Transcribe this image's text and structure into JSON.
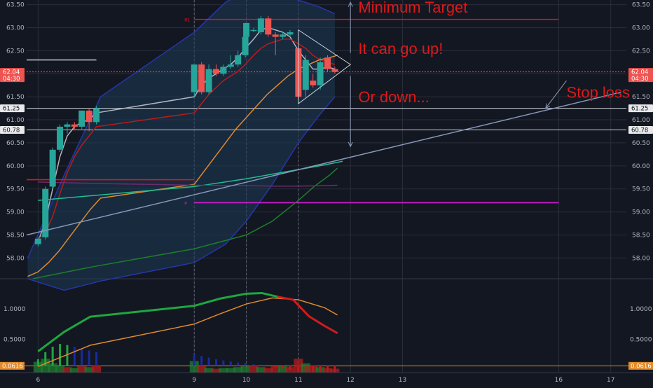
{
  "chart_data": {
    "type": "candlestick",
    "colors": {
      "background": "#131722",
      "grid": "#2a2e39",
      "up": "#26a69a",
      "down": "#ef5350",
      "target_line": "#e0141e",
      "pivot_line": "#d81bd8",
      "annotation": "#e01818",
      "ema_fast": "#b2b5be",
      "ema_red": "#b71c1c",
      "ma_orange": "#e08a2c",
      "ma_teal": "#1fbf8f",
      "ma_green": "#1b7f2a",
      "trendline": "#8797b8",
      "band_fill": "#1e3a56",
      "band_edge": "#2635a8",
      "macd_line": "#1ea73f",
      "macd_signal": "#e08a2c",
      "macd_hist_pos": "#1e7f30",
      "macd_hist_neg": "#b71c1c",
      "macd_blue": "#1a2a9e",
      "zero_line": "#e08a2c"
    },
    "price_axis": {
      "ylim": [
        57.55,
        63.6
      ],
      "ticks": [
        "58.00",
        "58.50",
        "59.00",
        "59.50",
        "60.00",
        "60.50",
        "61.00",
        "61.50",
        "62.00",
        "62.50",
        "63.00",
        "63.50"
      ],
      "tick_values": [
        58,
        58.5,
        59,
        59.5,
        60,
        60.5,
        61,
        61.5,
        62,
        62.5,
        63,
        63.5
      ]
    },
    "time_axis": {
      "xlim": [
        5.78,
        17.3
      ],
      "ticks": [
        "6",
        "9",
        "10",
        "11",
        "12",
        "13",
        "16",
        "17"
      ],
      "tick_positions": [
        6,
        9,
        10,
        11,
        12,
        13,
        16,
        17
      ]
    },
    "candles": [
      {
        "x": 6.0,
        "o": 58.3,
        "h": 58.45,
        "l": 58.25,
        "c": 58.42
      },
      {
        "x": 6.14,
        "o": 58.45,
        "h": 59.55,
        "l": 58.4,
        "c": 59.5
      },
      {
        "x": 6.28,
        "o": 59.55,
        "h": 60.4,
        "l": 59.5,
        "c": 60.35
      },
      {
        "x": 6.42,
        "o": 60.35,
        "h": 60.9,
        "l": 60.3,
        "c": 60.85
      },
      {
        "x": 6.56,
        "o": 60.85,
        "h": 60.95,
        "l": 60.7,
        "c": 60.9
      },
      {
        "x": 6.7,
        "o": 60.9,
        "h": 60.95,
        "l": 60.8,
        "c": 60.85
      },
      {
        "x": 6.84,
        "o": 60.85,
        "h": 61.2,
        "l": 60.8,
        "c": 61.2
      },
      {
        "x": 6.98,
        "o": 61.2,
        "h": 61.25,
        "l": 60.75,
        "c": 60.95
      },
      {
        "x": 7.12,
        "o": 60.95,
        "h": 61.3,
        "l": 60.9,
        "c": 61.25
      },
      {
        "x": 9.0,
        "o": 61.6,
        "h": 62.2,
        "l": 61.5,
        "c": 62.2
      },
      {
        "x": 9.14,
        "o": 62.2,
        "h": 62.25,
        "l": 61.55,
        "c": 61.6
      },
      {
        "x": 9.28,
        "o": 61.6,
        "h": 62.2,
        "l": 61.55,
        "c": 62.1
      },
      {
        "x": 9.42,
        "o": 62.1,
        "h": 62.2,
        "l": 61.95,
        "c": 62.0
      },
      {
        "x": 9.56,
        "o": 62.0,
        "h": 62.2,
        "l": 61.95,
        "c": 62.15
      },
      {
        "x": 9.7,
        "o": 62.15,
        "h": 62.4,
        "l": 62.1,
        "c": 62.2
      },
      {
        "x": 9.84,
        "o": 62.2,
        "h": 62.5,
        "l": 62.15,
        "c": 62.4
      },
      {
        "x": 9.98,
        "o": 62.4,
        "h": 62.8,
        "l": 62.35,
        "c": 62.8
      },
      {
        "x": 10.0,
        "o": 62.8,
        "h": 63.1,
        "l": 62.75,
        "c": 63.1
      },
      {
        "x": 10.14,
        "o": 62.95,
        "h": 63.0,
        "l": 62.9,
        "c": 62.95
      },
      {
        "x": 10.28,
        "o": 62.9,
        "h": 63.25,
        "l": 62.85,
        "c": 63.2
      },
      {
        "x": 10.42,
        "o": 63.2,
        "h": 63.25,
        "l": 62.8,
        "c": 62.85
      },
      {
        "x": 10.56,
        "o": 62.85,
        "h": 62.9,
        "l": 62.4,
        "c": 62.8
      },
      {
        "x": 10.7,
        "o": 62.8,
        "h": 62.9,
        "l": 62.75,
        "c": 62.85
      },
      {
        "x": 10.84,
        "o": 62.85,
        "h": 62.95,
        "l": 62.8,
        "c": 62.9
      },
      {
        "x": 11.0,
        "o": 62.55,
        "h": 62.6,
        "l": 61.45,
        "c": 61.5
      },
      {
        "x": 11.14,
        "o": 61.65,
        "h": 62.4,
        "l": 61.5,
        "c": 62.3
      },
      {
        "x": 11.28,
        "o": 61.85,
        "h": 62.0,
        "l": 61.7,
        "c": 61.75
      },
      {
        "x": 11.42,
        "o": 61.75,
        "h": 62.35,
        "l": 61.65,
        "c": 62.25
      },
      {
        "x": 11.56,
        "o": 62.35,
        "h": 62.4,
        "l": 62.05,
        "c": 62.1
      },
      {
        "x": 11.7,
        "o": 62.1,
        "h": 62.15,
        "l": 62.0,
        "c": 62.04
      }
    ],
    "series": [
      {
        "x": [
          6.0,
          6.14,
          6.28,
          6.42,
          6.56,
          6.7,
          6.84,
          6.98,
          7.12,
          9.0,
          9.14,
          9.28,
          9.42,
          9.56,
          9.7,
          9.84,
          9.98,
          10.14,
          10.28,
          10.42,
          10.56,
          10.7,
          10.84,
          11.0,
          11.14,
          11.28,
          11.42,
          11.56,
          11.7
        ],
        "y": [
          58.35,
          58.8,
          59.5,
          60.2,
          60.65,
          60.85,
          60.95,
          61.0,
          61.15,
          61.5,
          61.75,
          61.9,
          62.0,
          62.1,
          62.2,
          62.35,
          62.55,
          62.75,
          62.95,
          63.0,
          62.95,
          62.9,
          62.8,
          62.5,
          62.3,
          62.1,
          62.1,
          62.15,
          62.1
        ]
      },
      {
        "x": [
          6.0,
          6.14,
          6.28,
          6.42,
          6.56,
          6.7,
          6.84,
          6.98,
          7.12,
          9.0,
          9.14,
          9.28,
          9.42,
          9.56,
          9.7,
          9.84,
          9.98,
          10.14,
          10.28,
          10.42,
          10.56,
          10.7,
          10.84,
          11.0,
          11.14,
          11.28,
          11.42,
          11.56,
          11.7
        ],
        "y": [
          58.4,
          58.55,
          58.9,
          59.4,
          59.85,
          60.2,
          60.45,
          60.65,
          60.85,
          61.15,
          61.35,
          61.55,
          61.7,
          61.85,
          61.95,
          62.05,
          62.2,
          62.4,
          62.55,
          62.65,
          62.7,
          62.75,
          62.75,
          62.65,
          62.55,
          62.4,
          62.3,
          62.25,
          62.2
        ]
      },
      {
        "x": [
          5.8,
          6.0,
          6.2,
          6.4,
          6.6,
          6.8,
          7.0,
          7.2,
          9.0,
          9.2,
          9.4,
          9.6,
          9.8,
          10.0,
          10.2,
          10.4,
          10.6,
          10.8,
          11.0,
          11.2,
          11.4,
          11.6,
          11.75
        ],
        "y": [
          57.6,
          57.7,
          57.9,
          58.15,
          58.45,
          58.75,
          59.05,
          59.3,
          59.6,
          59.9,
          60.2,
          60.5,
          60.8,
          61.05,
          61.3,
          61.55,
          61.75,
          61.95,
          62.1,
          62.2,
          62.3,
          62.35,
          62.4
        ]
      },
      {
        "x": [
          6.0,
          7.0,
          8.0,
          9.0,
          10.0,
          10.5,
          11.0,
          11.5,
          11.85
        ],
        "y": [
          59.25,
          59.35,
          59.45,
          59.55,
          59.72,
          59.82,
          59.92,
          60.02,
          60.1
        ]
      },
      {
        "x": [
          5.9,
          7.0,
          8.0,
          9.0,
          10.0,
          10.5,
          11.0,
          11.3,
          11.6,
          11.75
        ],
        "y": [
          57.55,
          57.8,
          58.0,
          58.2,
          58.5,
          58.8,
          59.25,
          59.55,
          59.8,
          59.95
        ]
      },
      {
        "x": [
          6.0,
          7.0,
          8.0,
          9.0,
          10.0,
          10.5,
          11.0,
          11.5,
          11.75
        ],
        "y": [
          59.65,
          59.62,
          59.6,
          59.58,
          59.57,
          59.56,
          59.56,
          59.57,
          59.58
        ]
      }
    ],
    "band": {
      "x": [
        5.8,
        6.5,
        7.2,
        9.0,
        9.6,
        10.0,
        10.5,
        11.0,
        11.4,
        11.7
      ],
      "upper": [
        58.0,
        59.8,
        61.5,
        62.9,
        63.55,
        63.8,
        63.75,
        63.6,
        63.45,
        63.3
      ],
      "lower": [
        57.55,
        57.3,
        57.5,
        57.9,
        58.3,
        58.8,
        59.6,
        60.5,
        61.1,
        61.5
      ]
    },
    "levels": [
      {
        "y": 63.18,
        "x1": 9.0,
        "x2": 16.0,
        "color_key": "target_line",
        "tag": "R1"
      },
      {
        "y": 59.7,
        "x1": 5.78,
        "x2": 9.0,
        "color_key": "target_line",
        "tag": ""
      },
      {
        "y": 59.2,
        "x1": 9.0,
        "x2": 16.0,
        "color_key": "pivot_line",
        "tag": "P"
      },
      {
        "y": 61.25,
        "x1": 5.78,
        "x2": 17.3,
        "color_key": "white",
        "tag": ""
      },
      {
        "y": 60.78,
        "x1": 5.78,
        "x2": 17.3,
        "color_key": "white",
        "tag": ""
      },
      {
        "y": 62.3,
        "x1": 5.78,
        "x2": 7.12,
        "color_key": "ema_fast",
        "tag": ""
      }
    ],
    "trendline": {
      "x": [
        5.78,
        17.2
      ],
      "y": [
        58.5,
        61.6
      ]
    },
    "triangle": {
      "apex": [
        12.0,
        62.2
      ],
      "top": [
        11.0,
        62.95
      ],
      "bottom": [
        11.0,
        61.35
      ]
    },
    "arrows": {
      "up_start": [
        12.0,
        62.45
      ],
      "up_end": [
        12.0,
        63.55
      ],
      "down_start": [
        12.0,
        61.95
      ],
      "down_end": [
        12.0,
        60.42
      ],
      "stop_start": [
        16.15,
        61.85
      ],
      "stop_end": [
        15.75,
        61.25
      ]
    },
    "annotations": [
      {
        "text": "Minimum Target",
        "x": 12.15,
        "y": 63.45
      },
      {
        "text": "It can go up!",
        "x": 12.15,
        "y": 62.55
      },
      {
        "text": "Or down...",
        "x": 12.15,
        "y": 61.5
      },
      {
        "text": "Stop loss",
        "x": 16.15,
        "y": 61.6
      }
    ],
    "price_tags": [
      {
        "label": "62.04",
        "sub": "04:30",
        "y": 62.04,
        "color_key": "down"
      },
      {
        "label": "61.25",
        "sub": "",
        "y": 61.25,
        "color_key": "white"
      },
      {
        "label": "60.78",
        "sub": "",
        "y": 60.78,
        "color_key": "white"
      }
    ],
    "macd": {
      "axis_ticks": [
        "1.0000",
        "0.5000"
      ],
      "tick_values": [
        1.0,
        0.5
      ],
      "ylim": [
        -0.05,
        1.45
      ],
      "zero_label": "0.0616",
      "zero_value": 0.0616,
      "line": {
        "x": [
          6.0,
          6.5,
          7.0,
          9.0,
          9.5,
          10.0,
          10.3,
          10.6
        ],
        "y": [
          0.3,
          0.62,
          0.87,
          1.05,
          1.17,
          1.25,
          1.26,
          1.2
        ]
      },
      "line_red": {
        "x": [
          10.6,
          10.9,
          11.2,
          11.5,
          11.75
        ],
        "y": [
          1.2,
          1.15,
          0.88,
          0.72,
          0.6
        ]
      },
      "signal": {
        "x": [
          6.0,
          7.0,
          9.0,
          9.5,
          10.0,
          10.5,
          11.0,
          11.5,
          11.75
        ],
        "y": [
          0.05,
          0.4,
          0.75,
          0.92,
          1.08,
          1.18,
          1.15,
          1.02,
          0.9
        ]
      },
      "hist": [
        {
          "x": 6.0,
          "v": 0.12,
          "k": "macd_line"
        },
        {
          "x": 6.14,
          "v": 0.25,
          "k": "macd_line"
        },
        {
          "x": 6.28,
          "v": 0.35,
          "k": "macd_line"
        },
        {
          "x": 6.42,
          "v": 0.4,
          "k": "macd_line"
        },
        {
          "x": 6.56,
          "v": 0.38,
          "k": "macd_line"
        },
        {
          "x": 6.7,
          "v": 0.35,
          "k": "macd_blue"
        },
        {
          "x": 6.84,
          "v": 0.3,
          "k": "macd_blue"
        },
        {
          "x": 6.98,
          "v": 0.28,
          "k": "macd_blue"
        },
        {
          "x": 7.12,
          "v": 0.25,
          "k": "macd_blue"
        },
        {
          "x": 9.0,
          "v": 0.22,
          "k": "macd_blue"
        },
        {
          "x": 9.14,
          "v": 0.18,
          "k": "macd_blue"
        },
        {
          "x": 9.28,
          "v": 0.15,
          "k": "macd_blue"
        },
        {
          "x": 9.42,
          "v": 0.12,
          "k": "macd_blue"
        },
        {
          "x": 9.56,
          "v": 0.1,
          "k": "macd_blue"
        },
        {
          "x": 9.7,
          "v": 0.08,
          "k": "macd_blue"
        },
        {
          "x": 9.84,
          "v": 0.06,
          "k": "macd_blue"
        },
        {
          "x": 9.98,
          "v": 0.05,
          "k": "macd_blue"
        },
        {
          "x": 10.14,
          "v": 0.03,
          "k": "macd_blue"
        },
        {
          "x": 10.28,
          "v": 0.02,
          "k": "macd_blue"
        },
        {
          "x": 10.56,
          "v": -0.03,
          "k": "macd_hist_neg"
        },
        {
          "x": 10.7,
          "v": -0.05,
          "k": "macd_hist_neg"
        },
        {
          "x": 10.84,
          "v": -0.08,
          "k": "macd_hist_neg"
        },
        {
          "x": 11.0,
          "v": -0.12,
          "k": "macd_hist_neg"
        },
        {
          "x": 11.14,
          "v": -0.18,
          "k": "macd_hist_neg"
        },
        {
          "x": 11.28,
          "v": -0.22,
          "k": "macd_hist_neg"
        },
        {
          "x": 11.42,
          "v": -0.25,
          "k": "macd_hist_neg"
        },
        {
          "x": 11.56,
          "v": -0.28,
          "k": "macd_hist_neg"
        },
        {
          "x": 11.7,
          "v": -0.3,
          "k": "macd_hist_neg"
        }
      ]
    },
    "volume": [
      {
        "x": 6.0,
        "v": 0.7,
        "k": "macd_hist_pos"
      },
      {
        "x": 6.14,
        "v": 0.9,
        "k": "macd_hist_pos"
      },
      {
        "x": 6.28,
        "v": 0.6,
        "k": "macd_hist_pos"
      },
      {
        "x": 6.42,
        "v": 0.5,
        "k": "macd_hist_pos"
      },
      {
        "x": 6.56,
        "v": 0.35,
        "k": "macd_hist_neg"
      },
      {
        "x": 6.7,
        "v": 0.3,
        "k": "macd_hist_pos"
      },
      {
        "x": 6.84,
        "v": 0.4,
        "k": "macd_hist_neg"
      },
      {
        "x": 6.98,
        "v": 0.35,
        "k": "macd_hist_pos"
      },
      {
        "x": 7.12,
        "v": 0.45,
        "k": "macd_hist_neg"
      },
      {
        "x": 9.0,
        "v": 0.75,
        "k": "macd_hist_pos"
      },
      {
        "x": 9.14,
        "v": 0.5,
        "k": "macd_hist_neg"
      },
      {
        "x": 9.28,
        "v": 0.3,
        "k": "macd_hist_pos"
      },
      {
        "x": 9.42,
        "v": 0.25,
        "k": "macd_hist_neg"
      },
      {
        "x": 9.56,
        "v": 0.3,
        "k": "macd_hist_pos"
      },
      {
        "x": 9.7,
        "v": 0.3,
        "k": "macd_hist_pos"
      },
      {
        "x": 9.84,
        "v": 0.35,
        "k": "macd_hist_pos"
      },
      {
        "x": 9.98,
        "v": 0.4,
        "k": "macd_hist_pos"
      },
      {
        "x": 10.14,
        "v": 0.45,
        "k": "macd_hist_neg"
      },
      {
        "x": 10.28,
        "v": 0.35,
        "k": "macd_hist_pos"
      },
      {
        "x": 10.42,
        "v": 0.3,
        "k": "macd_hist_neg"
      },
      {
        "x": 10.56,
        "v": 0.5,
        "k": "macd_hist_neg"
      },
      {
        "x": 10.7,
        "v": 0.4,
        "k": "macd_hist_pos"
      },
      {
        "x": 10.84,
        "v": 0.35,
        "k": "macd_hist_neg"
      },
      {
        "x": 11.0,
        "v": 0.9,
        "k": "macd_hist_neg"
      },
      {
        "x": 11.14,
        "v": 0.6,
        "k": "macd_hist_pos"
      },
      {
        "x": 11.28,
        "v": 0.45,
        "k": "macd_hist_neg"
      },
      {
        "x": 11.42,
        "v": 0.35,
        "k": "macd_hist_pos"
      },
      {
        "x": 11.56,
        "v": 0.3,
        "k": "macd_hist_neg"
      },
      {
        "x": 11.7,
        "v": 0.25,
        "k": "macd_hist_neg"
      }
    ]
  }
}
